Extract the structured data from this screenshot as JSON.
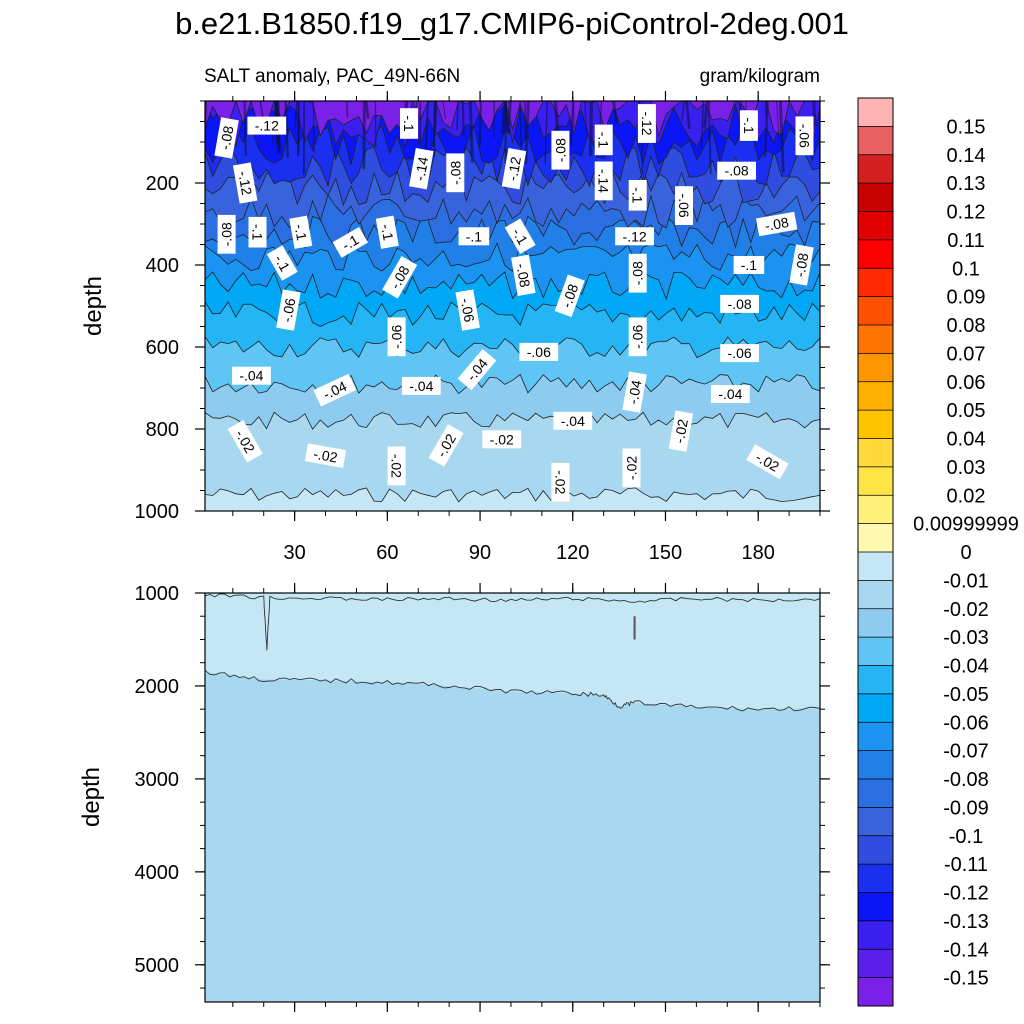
{
  "title": "b.e21.B1850.f19_g17.CMIP6-piControl-2deg.001",
  "chart_data": {
    "type": "heatmap",
    "variable_label": "SALT anomaly, PAC_49N-66N",
    "units_label": "gram/kilogram",
    "ylabel": "depth",
    "x_ticks": [
      "30",
      "60",
      "90",
      "120",
      "150",
      "180"
    ],
    "x_tick_values": [
      30,
      60,
      90,
      120,
      150,
      180
    ],
    "xlim": [
      1,
      200
    ],
    "panels": [
      {
        "name": "upper",
        "ylim": [
          0,
          1000
        ],
        "y_ticks": [
          "200",
          "400",
          "600",
          "800",
          "1000"
        ],
        "y_tick_values": [
          200,
          400,
          600,
          800,
          1000
        ],
        "layers": [
          {
            "level": -0.01,
            "color": "#c4e6f5",
            "y_top": 1000
          },
          {
            "level": -0.02,
            "color": "#a8d8f0",
            "y_top": 960
          },
          {
            "level": -0.03,
            "color": "#8ecbf0",
            "y_top": 780
          },
          {
            "level": -0.04,
            "color": "#5fc5f5",
            "y_top": 690
          },
          {
            "level": -0.05,
            "color": "#25b5f5",
            "y_top": 600
          },
          {
            "level": -0.06,
            "color": "#00a8f5",
            "y_top": 520
          },
          {
            "level": -0.07,
            "color": "#1b93f0",
            "y_top": 450
          },
          {
            "level": -0.08,
            "color": "#2080e8",
            "y_top": 380
          },
          {
            "level": -0.09,
            "color": "#2b6ee2",
            "y_top": 320
          },
          {
            "level": -0.1,
            "color": "#3863dd",
            "y_top": 270
          },
          {
            "level": -0.11,
            "color": "#2f4ee0",
            "y_top": 210
          },
          {
            "level": -0.12,
            "color": "#1a2fef",
            "y_top": 160
          },
          {
            "level": -0.13,
            "color": "#0a16f7",
            "y_top": 110
          },
          {
            "level": -0.14,
            "color": "#3b1ef0",
            "y_top": 60
          },
          {
            "level": -0.15,
            "color": "#7a20e8",
            "y_top": 30
          }
        ],
        "contour_labels": [
          {
            "text": "-.12",
            "x": 21,
            "y": 60,
            "angle": 0
          },
          {
            "text": "-.08",
            "x": 8,
            "y": 90,
            "angle": -80
          },
          {
            "text": "-.1",
            "x": 67,
            "y": 55,
            "angle": 90
          },
          {
            "text": "-.14",
            "x": 71,
            "y": 165,
            "angle": -80
          },
          {
            "text": "-.08",
            "x": 82,
            "y": 175,
            "angle": -90
          },
          {
            "text": "-.12",
            "x": 101,
            "y": 165,
            "angle": -80
          },
          {
            "text": "-.08",
            "x": 116,
            "y": 120,
            "angle": -90
          },
          {
            "text": "-.1",
            "x": 130,
            "y": 95,
            "angle": 90
          },
          {
            "text": "-.12",
            "x": 144,
            "y": 55,
            "angle": 90
          },
          {
            "text": "-.14",
            "x": 130,
            "y": 195,
            "angle": 90
          },
          {
            "text": "-.1",
            "x": 141,
            "y": 230,
            "angle": 90
          },
          {
            "text": "-.06",
            "x": 156,
            "y": 255,
            "angle": 90
          },
          {
            "text": "-.1",
            "x": 177,
            "y": 60,
            "angle": 90
          },
          {
            "text": "-.06",
            "x": 195,
            "y": 85,
            "angle": 90
          },
          {
            "text": "-.08",
            "x": 173,
            "y": 170,
            "angle": 0
          },
          {
            "text": "-.12",
            "x": 14,
            "y": 200,
            "angle": 80
          },
          {
            "text": "-.08",
            "x": 8,
            "y": 325,
            "angle": -90
          },
          {
            "text": "-.1",
            "x": 18,
            "y": 320,
            "angle": 90
          },
          {
            "text": "-.1",
            "x": 32,
            "y": 320,
            "angle": 80
          },
          {
            "text": "-.1",
            "x": 48,
            "y": 345,
            "angle": -30
          },
          {
            "text": "-.1",
            "x": 60,
            "y": 320,
            "angle": 80
          },
          {
            "text": "-.1",
            "x": 88,
            "y": 330,
            "angle": 0
          },
          {
            "text": "-.1",
            "x": 103,
            "y": 330,
            "angle": 60
          },
          {
            "text": "-.12",
            "x": 140,
            "y": 330,
            "angle": 0
          },
          {
            "text": "-.08",
            "x": 186,
            "y": 300,
            "angle": -10
          },
          {
            "text": "-.1",
            "x": 26,
            "y": 395,
            "angle": 60
          },
          {
            "text": "-.08",
            "x": 64,
            "y": 430,
            "angle": -60
          },
          {
            "text": "-.08",
            "x": 104,
            "y": 425,
            "angle": 80
          },
          {
            "text": "-.08",
            "x": 119,
            "y": 475,
            "angle": -70
          },
          {
            "text": "-.08",
            "x": 141,
            "y": 420,
            "angle": -90
          },
          {
            "text": "-.1",
            "x": 177,
            "y": 400,
            "angle": 0
          },
          {
            "text": "-.08",
            "x": 194,
            "y": 400,
            "angle": -80
          },
          {
            "text": "-.06",
            "x": 28,
            "y": 510,
            "angle": -80
          },
          {
            "text": "-.06",
            "x": 86,
            "y": 510,
            "angle": 80
          },
          {
            "text": "-.08",
            "x": 174,
            "y": 495,
            "angle": 0
          },
          {
            "text": "-.06",
            "x": 63,
            "y": 575,
            "angle": -90
          },
          {
            "text": "-.06",
            "x": 141,
            "y": 575,
            "angle": -90
          },
          {
            "text": "-.06",
            "x": 109,
            "y": 612,
            "angle": 0
          },
          {
            "text": "-.06",
            "x": 174,
            "y": 615,
            "angle": 0
          },
          {
            "text": "-.04",
            "x": 16,
            "y": 670,
            "angle": 0
          },
          {
            "text": "-.04",
            "x": 43,
            "y": 705,
            "angle": -25
          },
          {
            "text": "-.04",
            "x": 71,
            "y": 695,
            "angle": 0
          },
          {
            "text": "-.04",
            "x": 89,
            "y": 655,
            "angle": -50
          },
          {
            "text": "-.04",
            "x": 140,
            "y": 710,
            "angle": -80
          },
          {
            "text": "-.04",
            "x": 171,
            "y": 715,
            "angle": 0
          },
          {
            "text": "-.04",
            "x": 120,
            "y": 780,
            "angle": 0
          },
          {
            "text": "-.02",
            "x": 155,
            "y": 805,
            "angle": -80
          },
          {
            "text": "-.02",
            "x": 14,
            "y": 830,
            "angle": 60
          },
          {
            "text": "-.02",
            "x": 40,
            "y": 865,
            "angle": 10
          },
          {
            "text": "-.02",
            "x": 63,
            "y": 890,
            "angle": 90
          },
          {
            "text": "-.02",
            "x": 79,
            "y": 840,
            "angle": -60
          },
          {
            "text": "-.02",
            "x": 97,
            "y": 825,
            "angle": 0
          },
          {
            "text": "-.02",
            "x": 116,
            "y": 930,
            "angle": 90
          },
          {
            "text": "-.02",
            "x": 139,
            "y": 895,
            "angle": -90
          },
          {
            "text": "-.02",
            "x": 183,
            "y": 880,
            "angle": 30
          }
        ]
      },
      {
        "name": "lower",
        "ylim": [
          1000,
          5400
        ],
        "y_ticks": [
          "1000",
          "2000",
          "3000",
          "4000",
          "5000"
        ],
        "y_tick_values": [
          1000,
          2000,
          3000,
          4000,
          5000
        ],
        "layers": [
          {
            "level": -0.01,
            "color": "#c4e6f5",
            "y_top": 1000
          },
          {
            "level": -0.02,
            "color": "#a8d8f0",
            "y_top": 2000
          }
        ],
        "contour_lines": [
          {
            "level": -0.01,
            "x": [
              1,
              20,
              21,
              22,
              40,
              60,
              80,
              100,
              120,
              140,
              160,
              180,
              200
            ],
            "y": [
              1020,
              1050,
              1600,
              1050,
              1060,
              1070,
              1060,
              1080,
              1060,
              1090,
              1060,
              1080,
              1060
            ]
          },
          {
            "level": -0.02,
            "x": [
              1,
              20,
              40,
              60,
              80,
              100,
              120,
              130,
              135,
              140,
              160,
              180,
              200
            ],
            "y": [
              1850,
              1930,
              1940,
              1960,
              2000,
              2060,
              2080,
              2100,
              2220,
              2180,
              2230,
              2250,
              2240
            ]
          }
        ]
      }
    ],
    "colorbar": {
      "labels": [
        "0.15",
        "0.14",
        "0.13",
        "0.12",
        "0.11",
        "0.1",
        "0.09",
        "0.08",
        "0.07",
        "0.06",
        "0.05",
        "0.04",
        "0.03",
        "0.02",
        "0.00999999",
        "0",
        "-0.01",
        "-0.02",
        "-0.03",
        "-0.04",
        "-0.05",
        "-0.06",
        "-0.07",
        "-0.08",
        "-0.09",
        "-0.1",
        "-0.11",
        "-0.12",
        "-0.13",
        "-0.14",
        "-0.15"
      ],
      "colors": [
        "#ffb3b3",
        "#e86060",
        "#d42020",
        "#c80000",
        "#e00000",
        "#ff0000",
        "#ff2a00",
        "#ff5000",
        "#ff7300",
        "#ff9500",
        "#ffb000",
        "#ffc400",
        "#ffd83a",
        "#ffe445",
        "#fff07a",
        "#fff8b0",
        "#c4e6f5",
        "#a8d8f0",
        "#8ecbf0",
        "#5fc5f5",
        "#25b5f5",
        "#00a8f5",
        "#1b93f0",
        "#2080e8",
        "#2b6ee2",
        "#3863dd",
        "#2f4ee0",
        "#1a2fef",
        "#0a16f7",
        "#3b1ef0",
        "#5a20ea",
        "#7a20e8"
      ]
    },
    "grid": false,
    "legend": "right"
  }
}
